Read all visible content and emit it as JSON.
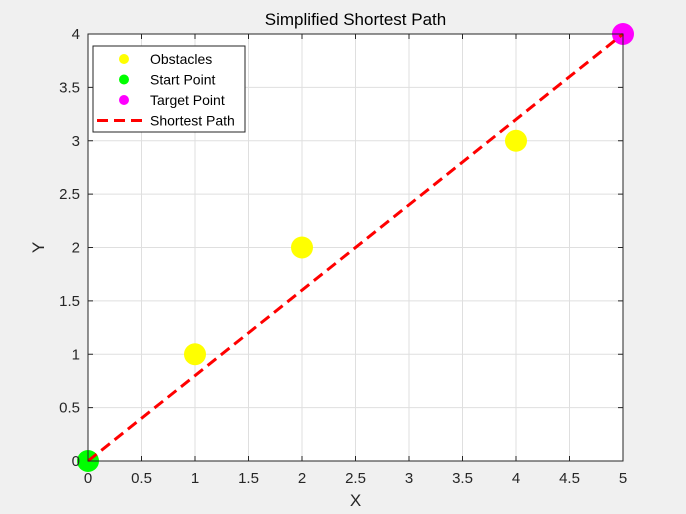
{
  "chart_data": {
    "type": "scatter",
    "title": "Simplified Shortest Path",
    "xlabel": "X",
    "ylabel": "Y",
    "xlim": [
      0,
      5
    ],
    "ylim": [
      0,
      4
    ],
    "xticks": [
      0,
      0.5,
      1,
      1.5,
      2,
      2.5,
      3,
      3.5,
      4,
      4.5,
      5
    ],
    "yticks": [
      0,
      0.5,
      1,
      1.5,
      2,
      2.5,
      3,
      3.5,
      4
    ],
    "xtick_labels": [
      "0",
      "0.5",
      "1",
      "1.5",
      "2",
      "2.5",
      "3",
      "3.5",
      "4",
      "4.5",
      "5"
    ],
    "ytick_labels": [
      "0",
      "0.5",
      "1",
      "1.5",
      "2",
      "2.5",
      "3",
      "3.5",
      "4"
    ],
    "grid": true,
    "legend_position": "top-left",
    "series": [
      {
        "name": "Obstacles",
        "kind": "marker",
        "color": "#ffff00",
        "x": [
          1,
          2,
          4
        ],
        "y": [
          1,
          2,
          3
        ]
      },
      {
        "name": "Start Point",
        "kind": "marker",
        "color": "#00ff00",
        "x": [
          0
        ],
        "y": [
          0
        ]
      },
      {
        "name": "Target Point",
        "kind": "marker",
        "color": "#ff00ff",
        "x": [
          5
        ],
        "y": [
          4
        ]
      },
      {
        "name": "Shortest Path",
        "kind": "dashed-line",
        "color": "#ff0000",
        "x": [
          0,
          5
        ],
        "y": [
          0,
          4
        ]
      }
    ]
  }
}
